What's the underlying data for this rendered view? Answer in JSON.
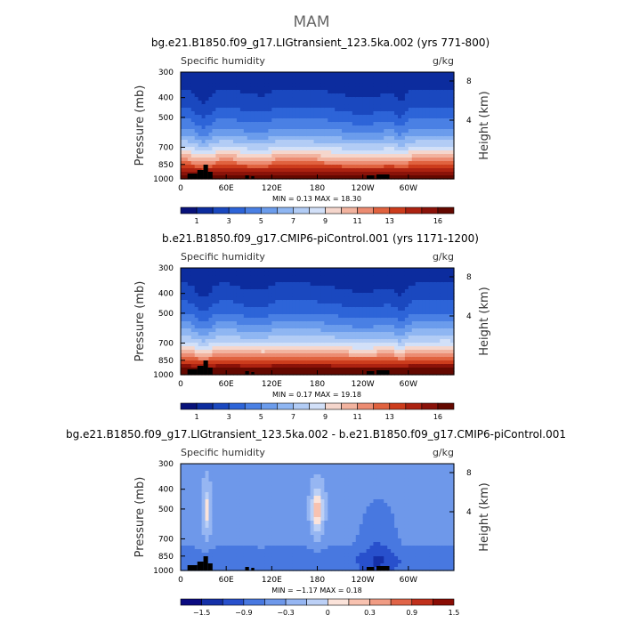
{
  "figure": {
    "season_title": "MAM"
  },
  "chart_data": [
    {
      "type": "heatmap",
      "title": "bg.e21.B1850.f09_g17.LIGtransient_123.5ka.002 (yrs 771-800)",
      "variable": "Specific humidity",
      "units": "g/kg",
      "ylabel": "Pressure (mb)",
      "ylabel_right": "Height (km)",
      "x_ticks": [
        "0",
        "60E",
        "120E",
        "180",
        "120W",
        "60W"
      ],
      "y_ticks": [
        "300",
        "400",
        "500",
        "700",
        "850",
        "1000"
      ],
      "right_ticks": [
        "8",
        "4"
      ],
      "stats": "MIN =     0.13   MAX =   18.30",
      "colorbar_labels": [
        "1",
        "3",
        "5",
        "7",
        "9",
        "11",
        "13",
        "16"
      ],
      "field": "humidity",
      "value_range": [
        0.13,
        18.3
      ]
    },
    {
      "type": "heatmap",
      "title": "b.e21.B1850.f09_g17.CMIP6-piControl.001 (yrs 1171-1200)",
      "variable": "Specific humidity",
      "units": "g/kg",
      "ylabel": "Pressure (mb)",
      "ylabel_right": "Height (km)",
      "x_ticks": [
        "0",
        "60E",
        "120E",
        "180",
        "120W",
        "60W"
      ],
      "y_ticks": [
        "300",
        "400",
        "500",
        "700",
        "850",
        "1000"
      ],
      "right_ticks": [
        "8",
        "4"
      ],
      "stats": "MIN =     0.17   MAX =   19.18",
      "colorbar_labels": [
        "1",
        "3",
        "5",
        "7",
        "9",
        "11",
        "13",
        "16"
      ],
      "field": "humidity",
      "value_range": [
        0.17,
        19.18
      ]
    },
    {
      "type": "heatmap",
      "title": "bg.e21.B1850.f09_g17.LIGtransient_123.5ka.002 - b.e21.B1850.f09_g17.CMIP6-piControl.001",
      "variable": "Specific humidity",
      "units": "g/kg",
      "ylabel": "Pressure (mb)",
      "ylabel_right": "Height (km)",
      "x_ticks": [
        "0",
        "60E",
        "120E",
        "180",
        "120W",
        "60W"
      ],
      "y_ticks": [
        "300",
        "400",
        "500",
        "700",
        "850",
        "1000"
      ],
      "right_ticks": [
        "8",
        "4"
      ],
      "stats": "MIN =    −1.17   MAX =    0.18",
      "colorbar_labels": [
        "−1.5",
        "−0.9",
        "−0.3",
        "0",
        "0.3",
        "0.9",
        "1.5"
      ],
      "field": "difference",
      "value_range": [
        -1.17,
        0.18
      ]
    }
  ]
}
